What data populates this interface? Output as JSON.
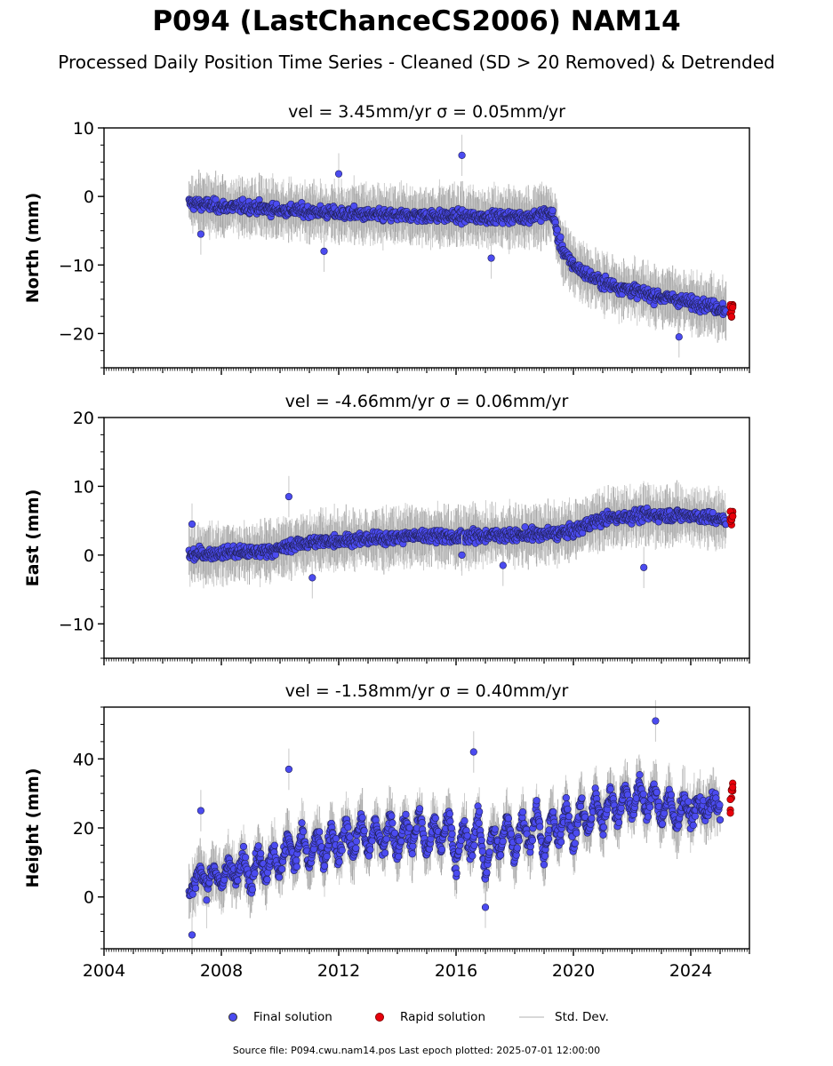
{
  "title": "P094 (LastChanceCS2006) NAM14",
  "subtitle": "Processed Daily Position Time Series - Cleaned (SD > 20 Removed) & Detrended",
  "footer": "Source file: P094.cwu.nam14.pos  Last epoch plotted: 2025-07-01 12:00:00",
  "legend": {
    "final_label": "Final solution",
    "rapid_label": "Rapid solution",
    "std_label": "Std. Dev."
  },
  "colors": {
    "final": "#4b4bf0",
    "rapid": "#e8000b",
    "stddev": "#c8c8c8",
    "spread": "#666666"
  },
  "chart_data": [
    {
      "type": "scatter",
      "panel": "north",
      "title": "vel = 3.45mm/yr   σ = 0.05mm/yr",
      "ylabel": "North (mm)",
      "xlim": [
        2004,
        2026
      ],
      "ylim": [
        -25,
        10
      ],
      "yticks": [
        10,
        0,
        -10,
        -20
      ],
      "xticks": [
        2004,
        2008,
        2012,
        2016,
        2020,
        2024
      ],
      "x_tick_labels_shown": false,
      "series": [
        {
          "name": "Final solution",
          "x": [
            2006.9,
            2007.5,
            2008.0,
            2008.5,
            2009.0,
            2009.5,
            2010.0,
            2010.5,
            2011.0,
            2011.5,
            2012.0,
            2012.5,
            2013.0,
            2013.5,
            2014.0,
            2014.5,
            2015.0,
            2015.5,
            2016.0,
            2016.5,
            2017.0,
            2017.5,
            2018.0,
            2018.5,
            2019.0,
            2019.3,
            2019.5,
            2019.8,
            2020.0,
            2020.5,
            2021.0,
            2021.5,
            2022.0,
            2022.5,
            2023.0,
            2023.5,
            2024.0,
            2024.5,
            2025.2
          ],
          "y": [
            -1.0,
            -1.2,
            -1.5,
            -1.5,
            -1.5,
            -1.8,
            -2.0,
            -2.0,
            -2.2,
            -2.3,
            -2.5,
            -2.5,
            -2.7,
            -2.8,
            -2.8,
            -2.8,
            -2.8,
            -2.9,
            -2.9,
            -3.0,
            -3.0,
            -3.0,
            -3.0,
            -3.0,
            -2.5,
            -2.5,
            -6.5,
            -9.0,
            -10.0,
            -11.5,
            -12.5,
            -13.2,
            -13.7,
            -14.2,
            -14.7,
            -15.0,
            -15.5,
            -15.8,
            -16.5
          ]
        },
        {
          "name": "Rapid solution",
          "x": [
            2025.35,
            2025.4,
            2025.45
          ],
          "y": [
            -16.5,
            -17.0,
            -16.0
          ]
        }
      ],
      "outliers": {
        "x": [
          2016.2,
          2011.5,
          2012.0,
          2017.2,
          2023.6,
          2007.3
        ],
        "y": [
          6.0,
          -8.0,
          3.3,
          -9.0,
          -20.5,
          -5.5
        ]
      }
    },
    {
      "type": "scatter",
      "panel": "east",
      "title": "vel = -4.66mm/yr   σ = 0.06mm/yr",
      "ylabel": "East (mm)",
      "xlim": [
        2004,
        2026
      ],
      "ylim": [
        -15,
        20
      ],
      "yticks": [
        20,
        10,
        0,
        -10
      ],
      "xticks": [
        2004,
        2008,
        2012,
        2016,
        2020,
        2024
      ],
      "x_tick_labels_shown": false,
      "series": [
        {
          "name": "Final solution",
          "x": [
            2006.9,
            2007.5,
            2008.0,
            2008.5,
            2009.0,
            2009.5,
            2010.0,
            2010.5,
            2011.0,
            2011.5,
            2012.0,
            2012.5,
            2013.0,
            2013.5,
            2014.0,
            2014.5,
            2015.0,
            2015.5,
            2016.0,
            2016.5,
            2017.0,
            2017.5,
            2018.0,
            2018.5,
            2019.0,
            2019.5,
            2020.0,
            2020.5,
            2021.0,
            2021.5,
            2022.0,
            2022.5,
            2023.0,
            2023.5,
            2024.0,
            2024.5,
            2025.2
          ],
          "y": [
            0.0,
            0.2,
            0.3,
            0.4,
            0.4,
            0.6,
            0.9,
            1.5,
            1.8,
            2.0,
            2.2,
            2.2,
            2.3,
            2.5,
            2.5,
            2.8,
            2.8,
            2.9,
            2.5,
            2.8,
            2.8,
            3.0,
            2.8,
            3.0,
            3.0,
            3.2,
            3.5,
            4.5,
            5.2,
            5.5,
            5.7,
            5.8,
            5.8,
            5.8,
            5.8,
            5.5,
            5.0
          ]
        },
        {
          "name": "Rapid solution",
          "x": [
            2025.35,
            2025.4,
            2025.45
          ],
          "y": [
            5.5,
            4.8,
            6.0
          ]
        }
      ],
      "outliers": {
        "x": [
          2010.3,
          2016.2,
          2022.4,
          2007.0,
          2011.1,
          2017.6
        ],
        "y": [
          8.5,
          0.0,
          -1.8,
          4.5,
          -3.3,
          -1.5
        ]
      }
    },
    {
      "type": "scatter",
      "panel": "height",
      "title": "vel = -1.58mm/yr   σ = 0.40mm/yr",
      "ylabel": "Height (mm)",
      "xlim": [
        2004,
        2026
      ],
      "ylim": [
        -15,
        55
      ],
      "yticks": [
        40,
        20,
        0
      ],
      "xticks": [
        2004,
        2008,
        2012,
        2016,
        2020,
        2024
      ],
      "x_tick_labels": [
        "2004",
        "2008",
        "2012",
        "2016",
        "2020",
        "2024"
      ],
      "x_tick_labels_shown": true,
      "series": [
        {
          "name": "Final solution",
          "x": [
            2006.9,
            2007.25,
            2007.5,
            2007.75,
            2008.0,
            2008.25,
            2008.5,
            2008.75,
            2009.0,
            2009.25,
            2009.5,
            2009.75,
            2010.0,
            2010.25,
            2010.5,
            2010.75,
            2011.0,
            2011.25,
            2011.5,
            2011.75,
            2012.0,
            2012.25,
            2012.5,
            2012.75,
            2013.0,
            2013.25,
            2013.5,
            2013.75,
            2014.0,
            2014.25,
            2014.5,
            2014.75,
            2015.0,
            2015.25,
            2015.5,
            2015.75,
            2016.0,
            2016.25,
            2016.5,
            2016.75,
            2017.0,
            2017.25,
            2017.5,
            2017.75,
            2018.0,
            2018.25,
            2018.5,
            2018.75,
            2019.0,
            2019.25,
            2019.5,
            2019.75,
            2020.0,
            2020.25,
            2020.5,
            2020.75,
            2021.0,
            2021.25,
            2021.5,
            2021.75,
            2022.0,
            2022.25,
            2022.5,
            2022.75,
            2023.0,
            2023.25,
            2023.5,
            2023.75,
            2024.0,
            2024.25,
            2024.5,
            2024.75,
            2025.0
          ],
          "y": [
            0,
            8,
            3,
            9,
            2,
            11,
            4,
            12,
            3,
            14,
            5,
            15,
            6,
            18,
            9,
            20,
            8,
            19,
            9,
            20,
            10,
            22,
            12,
            23,
            12,
            22,
            13,
            24,
            12,
            23,
            14,
            25,
            12,
            22,
            14,
            25,
            8,
            21,
            12,
            24,
            6,
            20,
            12,
            24,
            11,
            24,
            14,
            26,
            10,
            25,
            15,
            28,
            14,
            28,
            18,
            30,
            20,
            31,
            22,
            32,
            24,
            33,
            24,
            32,
            22,
            30,
            20,
            29,
            22,
            28,
            24,
            28,
            25
          ]
        },
        {
          "name": "Rapid solution",
          "x": [
            2025.35,
            2025.4,
            2025.45
          ],
          "y": [
            25,
            30,
            33
          ]
        }
      ],
      "outliers": {
        "x": [
          2010.3,
          2022.8,
          2007.3,
          2016.6,
          2007.0,
          2017.0
        ],
        "y": [
          37,
          51,
          25,
          42,
          -11,
          -3
        ]
      }
    }
  ]
}
